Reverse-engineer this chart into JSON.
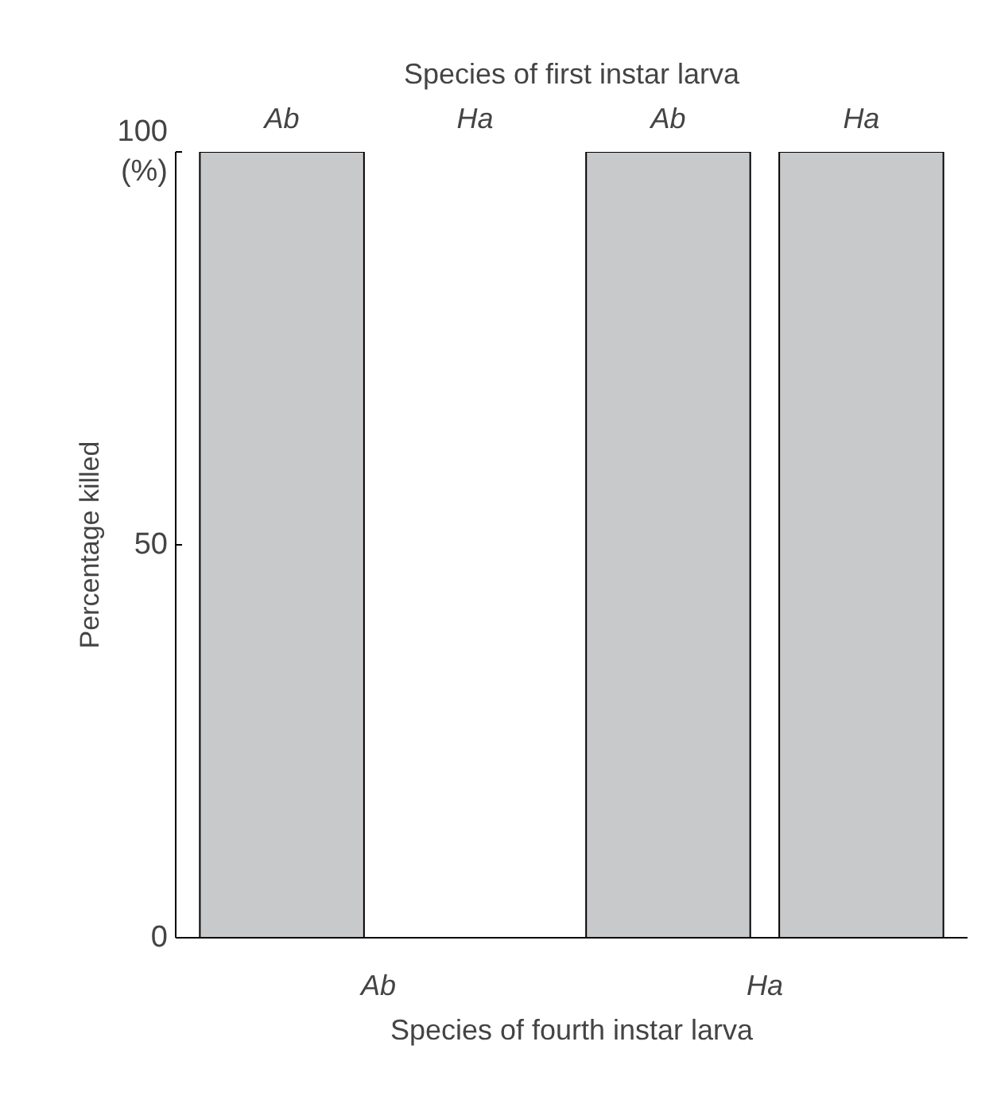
{
  "chart_data": {
    "type": "bar",
    "x2label": "Species of first instar larva",
    "xlabel": "Species of fourth instar larva",
    "ylabel": "Percentage killed",
    "categories": [
      "Ab",
      "Ha",
      "Ab",
      "Ha"
    ],
    "values": [
      100,
      0,
      100,
      100
    ],
    "color": "#c8c9cb",
    "ylim": [
      0,
      100
    ],
    "yticks": [
      0,
      50,
      100
    ],
    "grid": false,
    "annotations": [
      "Ab",
      "Ha",
      "(%)"
    ]
  }
}
